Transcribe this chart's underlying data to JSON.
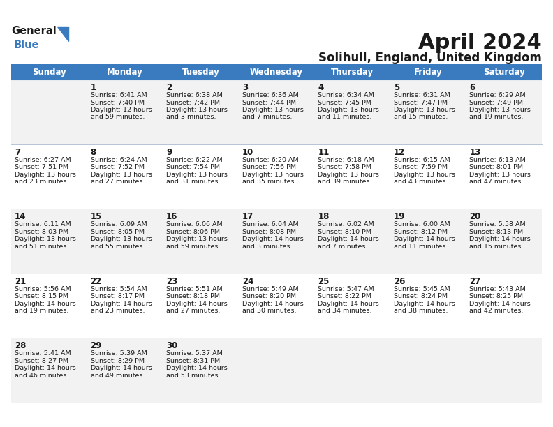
{
  "title": "April 2024",
  "subtitle": "Solihull, England, United Kingdom",
  "header_color": "#3a7abf",
  "header_text_color": "#ffffff",
  "background_color": "#ffffff",
  "row_alt_color": "#f2f2f2",
  "border_color": "#3a7abf",
  "text_color": "#1a1a1a",
  "days_of_week": [
    "Sunday",
    "Monday",
    "Tuesday",
    "Wednesday",
    "Thursday",
    "Friday",
    "Saturday"
  ],
  "weeks": [
    [
      {
        "day": "",
        "lines": []
      },
      {
        "day": "1",
        "lines": [
          "Sunrise: 6:41 AM",
          "Sunset: 7:40 PM",
          "Daylight: 12 hours",
          "and 59 minutes."
        ]
      },
      {
        "day": "2",
        "lines": [
          "Sunrise: 6:38 AM",
          "Sunset: 7:42 PM",
          "Daylight: 13 hours",
          "and 3 minutes."
        ]
      },
      {
        "day": "3",
        "lines": [
          "Sunrise: 6:36 AM",
          "Sunset: 7:44 PM",
          "Daylight: 13 hours",
          "and 7 minutes."
        ]
      },
      {
        "day": "4",
        "lines": [
          "Sunrise: 6:34 AM",
          "Sunset: 7:45 PM",
          "Daylight: 13 hours",
          "and 11 minutes."
        ]
      },
      {
        "day": "5",
        "lines": [
          "Sunrise: 6:31 AM",
          "Sunset: 7:47 PM",
          "Daylight: 13 hours",
          "and 15 minutes."
        ]
      },
      {
        "day": "6",
        "lines": [
          "Sunrise: 6:29 AM",
          "Sunset: 7:49 PM",
          "Daylight: 13 hours",
          "and 19 minutes."
        ]
      }
    ],
    [
      {
        "day": "7",
        "lines": [
          "Sunrise: 6:27 AM",
          "Sunset: 7:51 PM",
          "Daylight: 13 hours",
          "and 23 minutes."
        ]
      },
      {
        "day": "8",
        "lines": [
          "Sunrise: 6:24 AM",
          "Sunset: 7:52 PM",
          "Daylight: 13 hours",
          "and 27 minutes."
        ]
      },
      {
        "day": "9",
        "lines": [
          "Sunrise: 6:22 AM",
          "Sunset: 7:54 PM",
          "Daylight: 13 hours",
          "and 31 minutes."
        ]
      },
      {
        "day": "10",
        "lines": [
          "Sunrise: 6:20 AM",
          "Sunset: 7:56 PM",
          "Daylight: 13 hours",
          "and 35 minutes."
        ]
      },
      {
        "day": "11",
        "lines": [
          "Sunrise: 6:18 AM",
          "Sunset: 7:58 PM",
          "Daylight: 13 hours",
          "and 39 minutes."
        ]
      },
      {
        "day": "12",
        "lines": [
          "Sunrise: 6:15 AM",
          "Sunset: 7:59 PM",
          "Daylight: 13 hours",
          "and 43 minutes."
        ]
      },
      {
        "day": "13",
        "lines": [
          "Sunrise: 6:13 AM",
          "Sunset: 8:01 PM",
          "Daylight: 13 hours",
          "and 47 minutes."
        ]
      }
    ],
    [
      {
        "day": "14",
        "lines": [
          "Sunrise: 6:11 AM",
          "Sunset: 8:03 PM",
          "Daylight: 13 hours",
          "and 51 minutes."
        ]
      },
      {
        "day": "15",
        "lines": [
          "Sunrise: 6:09 AM",
          "Sunset: 8:05 PM",
          "Daylight: 13 hours",
          "and 55 minutes."
        ]
      },
      {
        "day": "16",
        "lines": [
          "Sunrise: 6:06 AM",
          "Sunset: 8:06 PM",
          "Daylight: 13 hours",
          "and 59 minutes."
        ]
      },
      {
        "day": "17",
        "lines": [
          "Sunrise: 6:04 AM",
          "Sunset: 8:08 PM",
          "Daylight: 14 hours",
          "and 3 minutes."
        ]
      },
      {
        "day": "18",
        "lines": [
          "Sunrise: 6:02 AM",
          "Sunset: 8:10 PM",
          "Daylight: 14 hours",
          "and 7 minutes."
        ]
      },
      {
        "day": "19",
        "lines": [
          "Sunrise: 6:00 AM",
          "Sunset: 8:12 PM",
          "Daylight: 14 hours",
          "and 11 minutes."
        ]
      },
      {
        "day": "20",
        "lines": [
          "Sunrise: 5:58 AM",
          "Sunset: 8:13 PM",
          "Daylight: 14 hours",
          "and 15 minutes."
        ]
      }
    ],
    [
      {
        "day": "21",
        "lines": [
          "Sunrise: 5:56 AM",
          "Sunset: 8:15 PM",
          "Daylight: 14 hours",
          "and 19 minutes."
        ]
      },
      {
        "day": "22",
        "lines": [
          "Sunrise: 5:54 AM",
          "Sunset: 8:17 PM",
          "Daylight: 14 hours",
          "and 23 minutes."
        ]
      },
      {
        "day": "23",
        "lines": [
          "Sunrise: 5:51 AM",
          "Sunset: 8:18 PM",
          "Daylight: 14 hours",
          "and 27 minutes."
        ]
      },
      {
        "day": "24",
        "lines": [
          "Sunrise: 5:49 AM",
          "Sunset: 8:20 PM",
          "Daylight: 14 hours",
          "and 30 minutes."
        ]
      },
      {
        "day": "25",
        "lines": [
          "Sunrise: 5:47 AM",
          "Sunset: 8:22 PM",
          "Daylight: 14 hours",
          "and 34 minutes."
        ]
      },
      {
        "day": "26",
        "lines": [
          "Sunrise: 5:45 AM",
          "Sunset: 8:24 PM",
          "Daylight: 14 hours",
          "and 38 minutes."
        ]
      },
      {
        "day": "27",
        "lines": [
          "Sunrise: 5:43 AM",
          "Sunset: 8:25 PM",
          "Daylight: 14 hours",
          "and 42 minutes."
        ]
      }
    ],
    [
      {
        "day": "28",
        "lines": [
          "Sunrise: 5:41 AM",
          "Sunset: 8:27 PM",
          "Daylight: 14 hours",
          "and 46 minutes."
        ]
      },
      {
        "day": "29",
        "lines": [
          "Sunrise: 5:39 AM",
          "Sunset: 8:29 PM",
          "Daylight: 14 hours",
          "and 49 minutes."
        ]
      },
      {
        "day": "30",
        "lines": [
          "Sunrise: 5:37 AM",
          "Sunset: 8:31 PM",
          "Daylight: 14 hours",
          "and 53 minutes."
        ]
      },
      {
        "day": "",
        "lines": []
      },
      {
        "day": "",
        "lines": []
      },
      {
        "day": "",
        "lines": []
      },
      {
        "day": "",
        "lines": []
      }
    ]
  ],
  "fig_width": 7.92,
  "fig_height": 6.12,
  "dpi": 100
}
